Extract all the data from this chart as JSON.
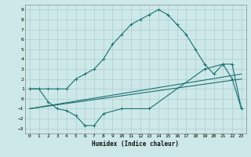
{
  "xlabel": "Humidex (Indice chaleur)",
  "xlim": [
    -0.5,
    23.5
  ],
  "ylim": [
    -3.5,
    9.5
  ],
  "xticks": [
    0,
    1,
    2,
    3,
    4,
    5,
    6,
    7,
    8,
    9,
    10,
    11,
    12,
    13,
    14,
    15,
    16,
    17,
    18,
    19,
    20,
    21,
    22,
    23
  ],
  "yticks": [
    -3,
    -2,
    -1,
    0,
    1,
    2,
    3,
    4,
    5,
    6,
    7,
    8,
    9
  ],
  "bg_color": "#cde8e8",
  "grid_color": "#b0cccc",
  "line_color": "#1a7070",
  "lines": [
    {
      "x": [
        0,
        1,
        2,
        3,
        4,
        5,
        6,
        7,
        8,
        9,
        10,
        11,
        12,
        13,
        14,
        15,
        16,
        17,
        18,
        19,
        20,
        21,
        22,
        23
      ],
      "y": [
        1,
        1,
        1,
        1,
        1,
        2,
        2.5,
        3,
        4,
        5.5,
        6.5,
        7.5,
        8,
        8.5,
        9,
        8.5,
        7.5,
        6.5,
        5,
        3.5,
        2.5,
        3.5,
        3.5,
        -1
      ],
      "marker": true
    },
    {
      "x": [
        0,
        1,
        2,
        3,
        4,
        5,
        6,
        7,
        8,
        10,
        13,
        19,
        21,
        22,
        23
      ],
      "y": [
        1,
        1,
        -0.3,
        -1,
        -1.2,
        -1.7,
        -2.7,
        -2.7,
        -1.5,
        -1,
        -1,
        3,
        3.5,
        2,
        -1
      ],
      "marker": true
    },
    {
      "x": [
        0,
        23
      ],
      "y": [
        -1,
        2.5
      ],
      "marker": false
    },
    {
      "x": [
        0,
        23
      ],
      "y": [
        -1,
        2.0
      ],
      "marker": false
    }
  ]
}
